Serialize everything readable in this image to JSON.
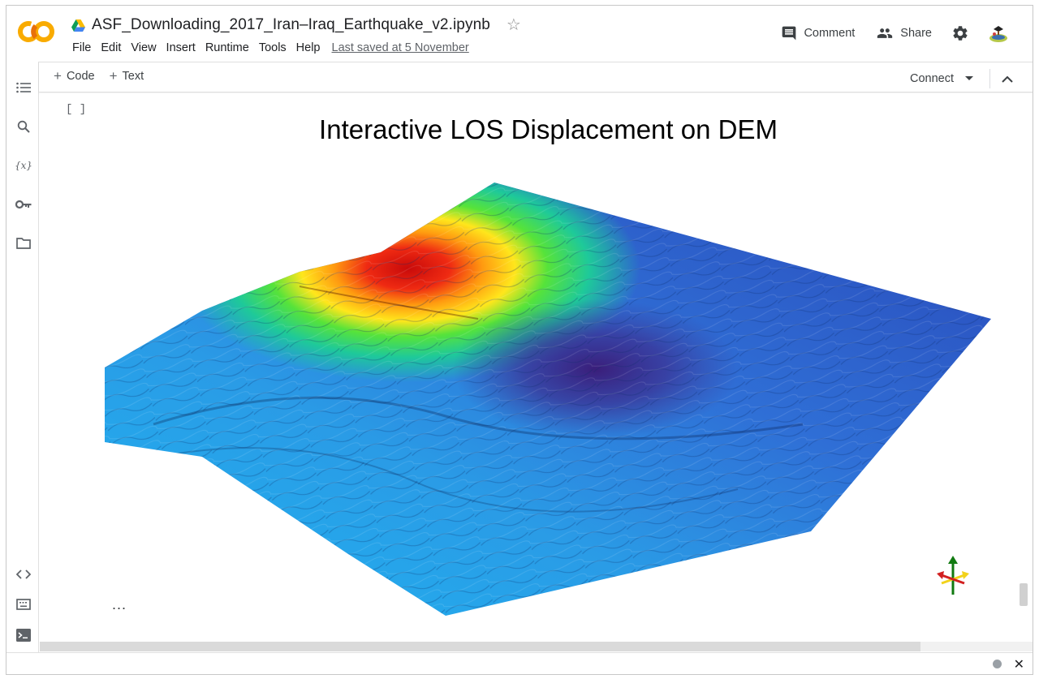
{
  "header": {
    "logo_text": "CO",
    "doc_title": "ASF_Downloading_2017_Iran–Iraq_Earthquake_v2.ipynb",
    "menu": [
      "File",
      "Edit",
      "View",
      "Insert",
      "Runtime",
      "Tools",
      "Help"
    ],
    "last_saved": "Last saved at 5 November",
    "comment_label": "Comment",
    "share_label": "Share"
  },
  "toolbar": {
    "code_label": "Code",
    "text_label": "Text",
    "connect_label": "Connect"
  },
  "cell": {
    "bracket": "[ ]",
    "plot_title": "Interactive LOS Displacement on DEM",
    "overflow_dots": "..."
  },
  "sidebar": {
    "items": [
      "table-of-contents-icon",
      "search-icon",
      "variables-icon",
      "secrets-key-icon",
      "files-folder-icon",
      "code-snippets-icon",
      "command-palette-icon",
      "terminal-icon"
    ],
    "variables_glyph": "{x}"
  },
  "status": {
    "close_glyph": "✕"
  },
  "colors": {
    "colab_orange": "#F9AB00",
    "colab_orange_dark": "#E8710A",
    "icon_grey": "#5f6368"
  }
}
